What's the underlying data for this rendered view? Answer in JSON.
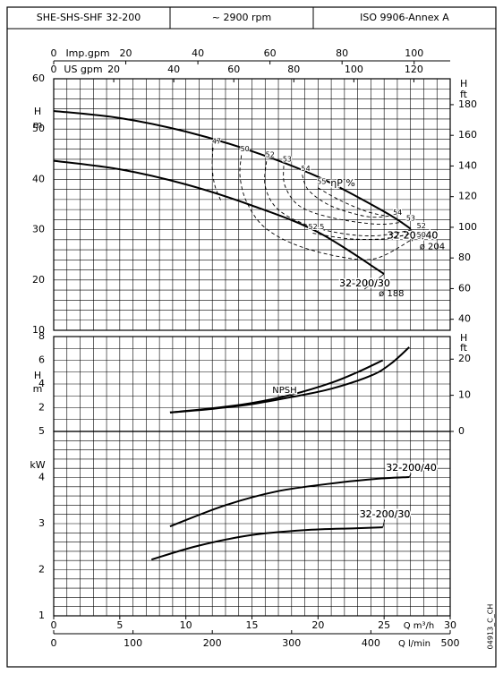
{
  "header": {
    "model": "SHE-SHS-SHF 32-200",
    "speed": "~ 2900 rpm",
    "standard": "ISO 9906-Annex A"
  },
  "code": "04913_C_CH",
  "x_axes": {
    "xlim": [
      0,
      30
    ],
    "xticks": [
      0,
      5,
      10,
      15,
      20,
      25,
      30
    ],
    "xlabel": "Q m³/h",
    "x_grid_step": 1,
    "lmin": {
      "lim": [
        0,
        500
      ],
      "ticks": [
        0,
        100,
        200,
        300,
        400,
        500
      ],
      "label": "Q l/min"
    },
    "impgpm": {
      "lim": [
        0,
        110.0
      ],
      "ticks": [
        0,
        20,
        40,
        60,
        80,
        100
      ],
      "label": "Imp.gpm"
    },
    "usgpm": {
      "lim": [
        0,
        132.1
      ],
      "ticks": [
        0,
        20,
        40,
        60,
        80,
        100,
        120
      ],
      "label": "US gpm"
    }
  },
  "chart_data": [
    {
      "type": "line",
      "ylabel": "H",
      "yunit": "m",
      "y2label": "H",
      "y2unit": "ft",
      "ylim": [
        10,
        60
      ],
      "yticks": [
        10,
        20,
        30,
        40,
        50,
        60
      ],
      "y2lim": [
        32.8,
        196.9
      ],
      "y2ticks": [
        40,
        60,
        80,
        100,
        120,
        140,
        160,
        180
      ],
      "grid_step": 2,
      "series": [
        {
          "name": "32-200/40",
          "sub": "ø 204",
          "color": "#000",
          "x": [
            0,
            5,
            10,
            15,
            20,
            25,
            27
          ],
          "values": [
            53.6,
            52.2,
            49.5,
            45.6,
            40.5,
            33.6,
            30.2
          ]
        },
        {
          "name": "32-200/30",
          "sub": "ø 188",
          "color": "#000",
          "x": [
            0,
            5,
            10,
            15,
            20,
            25
          ],
          "values": [
            43.7,
            42.0,
            39.0,
            34.8,
            29.5,
            21.2
          ]
        }
      ],
      "efficiency": {
        "label": "ηP %",
        "series": [
          {
            "name": "47",
            "x": [
              12.05,
              12.0,
              12.2,
              12.7
            ],
            "values": [
              46.3,
              42.3,
              38.7,
              35.5
            ]
          },
          {
            "name": "50",
            "x": [
              14.2,
              14.1,
              14.6,
              15.9,
              18.3,
              21.7,
              24.4,
              27.2
            ],
            "values": [
              44.8,
              40.5,
              35.5,
              30.6,
              27.0,
              24.6,
              24.3,
              28.2
            ]
          },
          {
            "name": "52",
            "x": [
              16.1,
              16.0,
              16.9,
              19.0,
              21.7,
              24.4,
              27.2
            ],
            "values": [
              43.6,
              38.7,
              34.2,
              31.1,
              29.3,
              28.8,
              30.0
            ]
          },
          {
            "name": "52.5",
            "x": [
              19.6,
              22.3,
              25.1,
              27.1
            ],
            "values": [
              29.3,
              28.2,
              28.2,
              29.3
            ]
          },
          {
            "name": "53",
            "x": [
              17.4,
              17.5,
              18.6,
              21.0,
              24.4,
              26.4
            ],
            "values": [
              42.7,
              38.7,
              34.7,
              32.4,
              31.1,
              31.5
            ]
          },
          {
            "name": "54",
            "x": [
              18.8,
              19.3,
              21.0,
              23.7,
              25.4
            ],
            "values": [
              40.9,
              37.8,
              34.7,
              32.6,
              32.7
            ]
          },
          {
            "name": "55",
            "x": [
              20.0,
              21.7,
              23.7,
              25.2
            ],
            "values": [
              38.3,
              35.8,
              33.6,
              32.7
            ]
          }
        ]
      }
    },
    {
      "type": "line",
      "label": "NPSH",
      "ylabel": "H",
      "yunit": "m",
      "y2label": "H",
      "y2unit": "ft",
      "ylim": [
        0,
        8
      ],
      "yticks": [
        2,
        4,
        6,
        8
      ],
      "y2lim": [
        0,
        26.25
      ],
      "y2ticks": [
        0,
        10,
        20
      ],
      "grid_step": 1,
      "series": [
        {
          "color": "#000",
          "x": [
            8.8,
            12,
            15,
            18,
            21,
            24,
            25.5,
            26.9
          ],
          "values": [
            1.6,
            1.9,
            2.3,
            2.9,
            3.6,
            4.7,
            5.7,
            7.1
          ]
        },
        {
          "color": "#000",
          "x": [
            8.8,
            12,
            15,
            18,
            21,
            23,
            24.9
          ],
          "values": [
            1.6,
            1.95,
            2.4,
            3.1,
            4.1,
            5.0,
            6.0
          ]
        }
      ]
    },
    {
      "type": "line",
      "ylabel": "kW",
      "ylim": [
        1,
        5
      ],
      "yticks": [
        1,
        2,
        3,
        4,
        5
      ],
      "grid_step": 0.2,
      "series": [
        {
          "name": "32-200/40",
          "color": "#000",
          "x": [
            8.8,
            12.9,
            16.9,
            21.0,
            24.4,
            26.9
          ],
          "values": [
            2.94,
            3.39,
            3.7,
            3.87,
            3.97,
            4.01
          ]
        },
        {
          "name": "32-200/30",
          "color": "#000",
          "x": [
            7.4,
            10.8,
            14.9,
            19.0,
            23.0,
            24.9
          ],
          "values": [
            2.22,
            2.51,
            2.75,
            2.86,
            2.9,
            2.92
          ]
        }
      ]
    }
  ]
}
